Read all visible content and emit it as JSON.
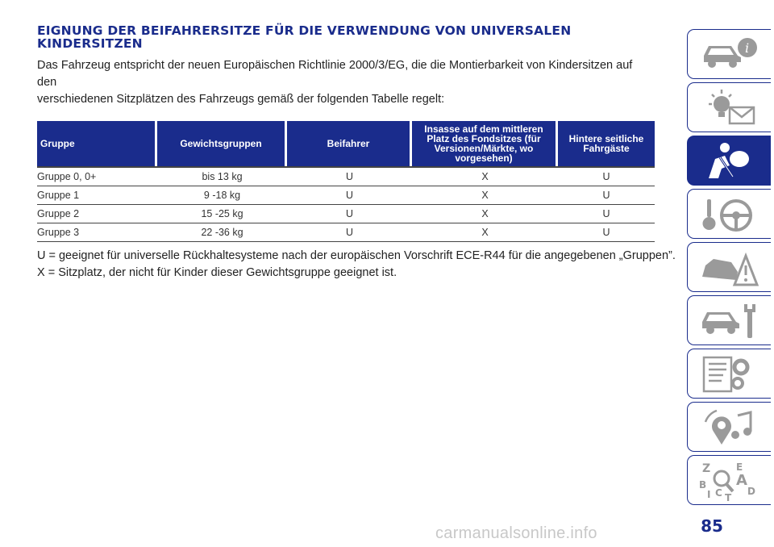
{
  "title_lines": [
    "EIGNUNG DER BEIFAHRERSITZE FÜR DIE VERWENDUNG VON UNIVERSALEN",
    "KINDERSITZEN"
  ],
  "intro_lines": [
    "Das Fahrzeug entspricht der neuen Europäischen Richtlinie 2000/3/EG, die die Montierbarkeit von Kindersitzen auf den",
    "verschiedenen Sitzplätzen des Fahrzeugs gemäß der folgenden Tabelle regelt:"
  ],
  "table": {
    "headers": [
      "Gruppe",
      "Gewichtsgruppen",
      "Beifahrer",
      "Insasse auf dem mittleren Platz des Fondsitzes (für Versionen/Märkte, wo vorgesehen)",
      "Hintere seitliche Fahrgäste"
    ],
    "rows": [
      [
        "Gruppe 0, 0+",
        "bis 13 kg",
        "U",
        "X",
        "U"
      ],
      [
        "Gruppe 1",
        "9 -18 kg",
        "U",
        "X",
        "U"
      ],
      [
        "Gruppe 2",
        "15 -25 kg",
        "U",
        "X",
        "U"
      ],
      [
        "Gruppe 3",
        "22 -36 kg",
        "U",
        "X",
        "U"
      ]
    ]
  },
  "legend": [
    "U = geeignet für universelle Rückhaltesysteme nach der europäischen Vorschrift ECE-R44 für die angegebenen „Gruppen”.",
    "X = Sitzplatz, der nicht für Kinder dieser Gewichtsgruppe geeignet ist."
  ],
  "sidebar_tabs": [
    {
      "icon": "car-info-icon",
      "active": false
    },
    {
      "icon": "warning-lights-icon",
      "active": false
    },
    {
      "icon": "safety-airbag-icon",
      "active": true
    },
    {
      "icon": "starting-driving-icon",
      "active": false
    },
    {
      "icon": "emergency-icon",
      "active": false
    },
    {
      "icon": "maintenance-icon",
      "active": false
    },
    {
      "icon": "technical-data-icon",
      "active": false
    },
    {
      "icon": "multimedia-icon",
      "active": false
    },
    {
      "icon": "index-icon",
      "active": false
    }
  ],
  "page_number": "85",
  "watermark": "carmanualsonline.info",
  "colors": {
    "accent": "#1a2c8c",
    "text": "#222222"
  }
}
